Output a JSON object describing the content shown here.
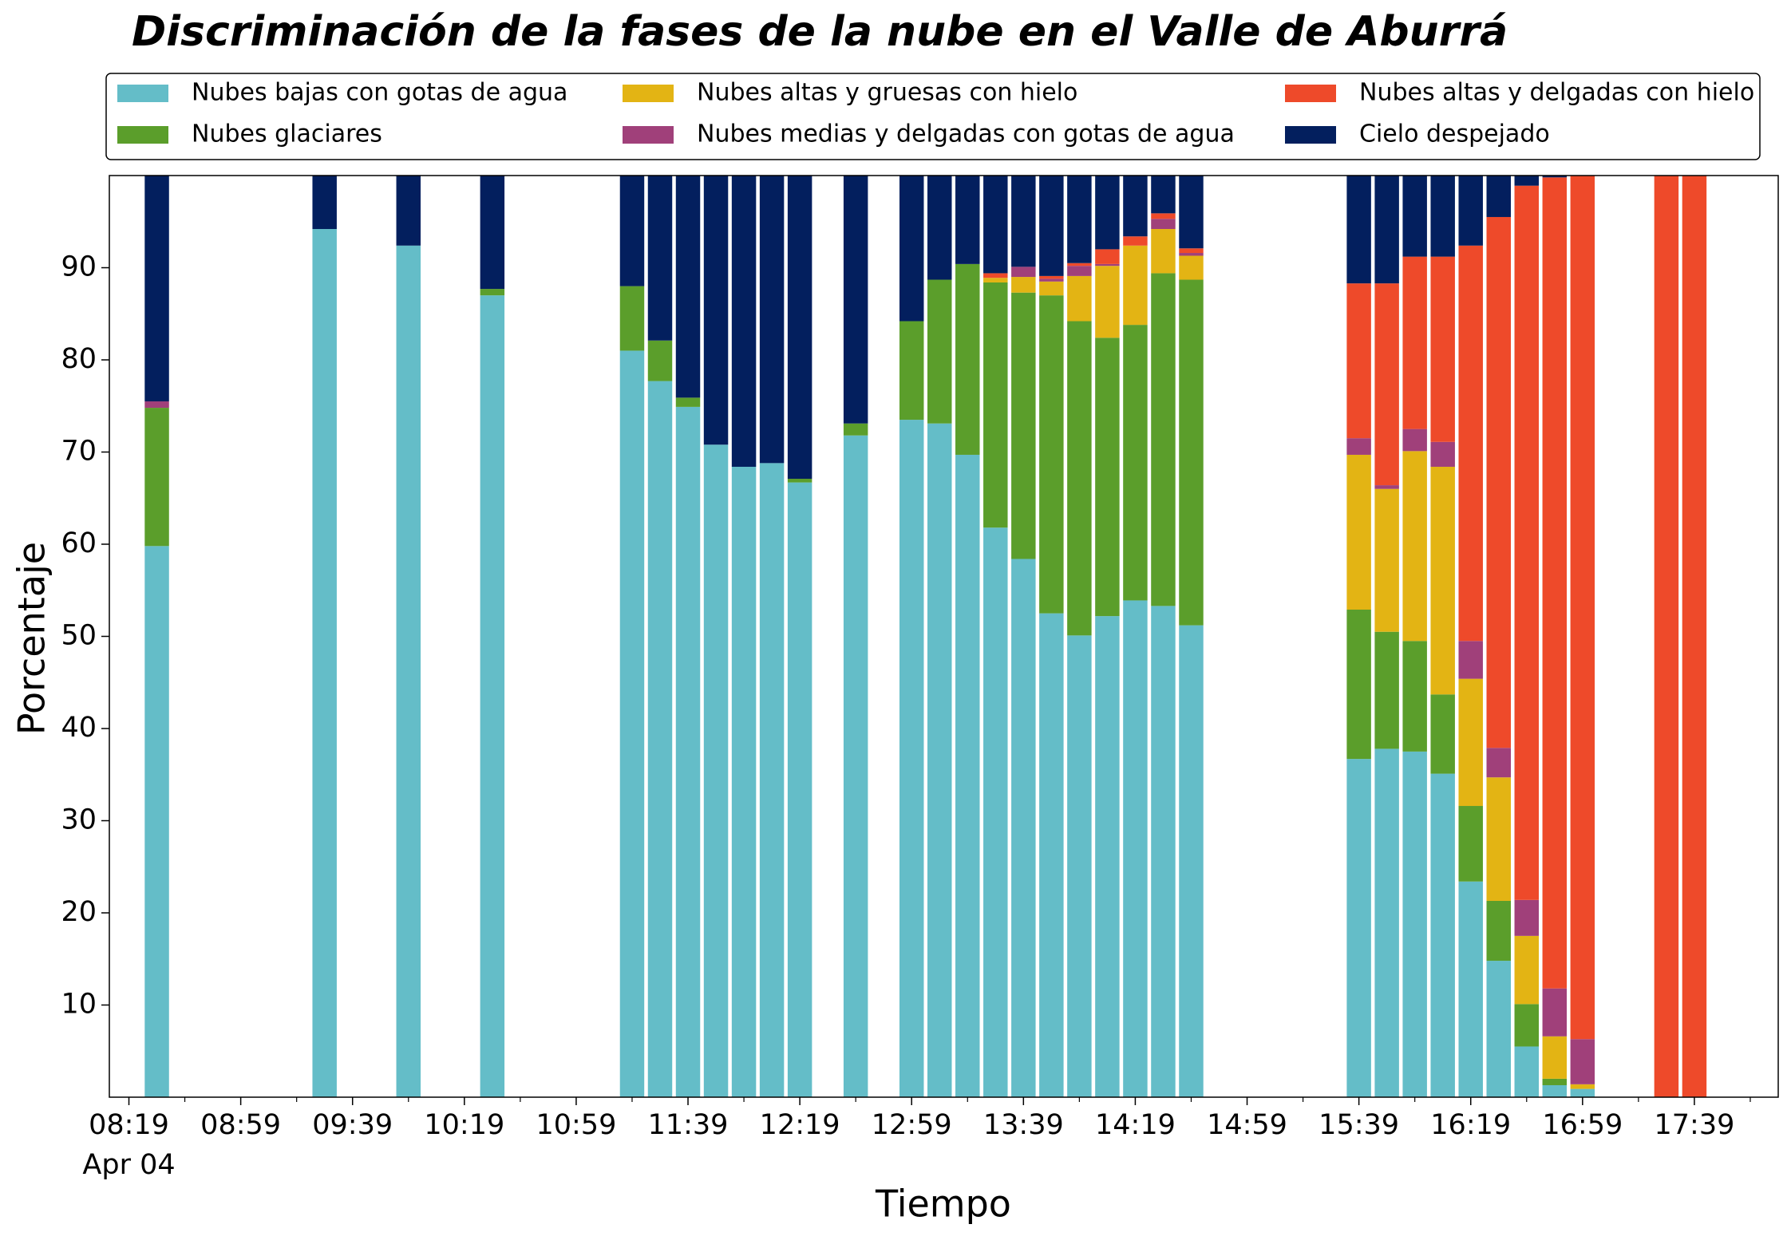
{
  "chart_data": {
    "type": "stacked_bar",
    "title": "Discriminación de la fases de la nube en el Valle de Aburrá",
    "xlabel": "Tiempo",
    "ylabel": "Porcentaje",
    "x": [
      "08:29",
      "09:29",
      "09:59",
      "10:29",
      "11:19",
      "11:29",
      "11:39",
      "11:49",
      "11:59",
      "12:09",
      "12:19",
      "12:39",
      "12:59",
      "13:09",
      "13:19",
      "13:29",
      "13:39",
      "13:49",
      "13:59",
      "14:09",
      "14:19",
      "14:29",
      "14:39",
      "15:39",
      "15:49",
      "15:59",
      "16:09",
      "16:19",
      "16:29",
      "16:39",
      "16:49",
      "16:59",
      "17:29",
      "17:39"
    ],
    "xlim": [
      "08:12",
      "18:09"
    ],
    "xticks": [
      "08:19",
      "08:59",
      "09:39",
      "10:19",
      "10:59",
      "11:39",
      "12:19",
      "12:59",
      "13:39",
      "14:19",
      "14:59",
      "15:39",
      "16:19",
      "16:59",
      "17:39"
    ],
    "xminorticks": [
      "08:39",
      "09:19",
      "09:59",
      "10:39",
      "11:19",
      "11:59",
      "12:39",
      "13:19",
      "13:59",
      "14:39",
      "15:19",
      "15:59",
      "16:39",
      "17:19",
      "17:59"
    ],
    "xtick_date": "Apr 04",
    "ylim": [
      0,
      100
    ],
    "yticks": [
      10,
      20,
      30,
      40,
      50,
      60,
      70,
      80,
      90
    ],
    "legend_position": "top",
    "series": [
      {
        "name": "Nubes bajas con gotas de agua",
        "color": "#64bdc8",
        "values": [
          59.8,
          94.2,
          92.4,
          87,
          81,
          77.7,
          74.9,
          70.8,
          68.4,
          68.8,
          66.7,
          71.8,
          73.5,
          73.1,
          69.7,
          61.8,
          58.4,
          52.5,
          50.1,
          52.2,
          53.9,
          53.3,
          51.2,
          36.7,
          37.8,
          37.5,
          35.1,
          23.4,
          14.8,
          5.5,
          1.3,
          0.9,
          0,
          0
        ]
      },
      {
        "name": "Nubes glaciares",
        "color": "#5b9e2b",
        "values": [
          15,
          0,
          0,
          0.7,
          7,
          4.4,
          1,
          0,
          0,
          0,
          0.4,
          1.3,
          10.7,
          15.6,
          20.7,
          26.6,
          28.9,
          34.5,
          34.1,
          30.2,
          29.9,
          36.1,
          37.5,
          16.2,
          12.7,
          12,
          8.6,
          8.2,
          6.5,
          4.6,
          0.7,
          0,
          0,
          0
        ]
      },
      {
        "name": "Nubes altas y gruesas con hielo",
        "color": "#e3b414",
        "values": [
          0,
          0,
          0,
          0,
          0,
          0,
          0,
          0,
          0,
          0,
          0,
          0,
          0,
          0,
          0,
          0.5,
          1.7,
          1.5,
          4.9,
          7.8,
          8.6,
          4.8,
          2.6,
          16.8,
          15.5,
          20.6,
          24.7,
          13.8,
          13.4,
          7.4,
          4.6,
          0.5,
          0,
          0
        ]
      },
      {
        "name": "Nubes medias y delgadas con gotas de agua",
        "color": "#a0407a",
        "values": [
          0.7,
          0,
          0,
          0,
          0,
          0,
          0,
          0,
          0,
          0,
          0,
          0,
          0,
          0,
          0,
          0,
          1.1,
          0.3,
          1.1,
          0.2,
          0,
          1.1,
          0.3,
          1.8,
          0.4,
          2.4,
          2.7,
          4.1,
          3.2,
          3.9,
          5.2,
          4.9,
          0,
          0
        ]
      },
      {
        "name": "Nubes altas y delgadas con hielo",
        "color": "#ee4a2a",
        "values": [
          0,
          0,
          0,
          0,
          0,
          0,
          0,
          0,
          0,
          0,
          0,
          0,
          0,
          0,
          0,
          0.5,
          0,
          0.3,
          0.3,
          1.6,
          1,
          0.6,
          0.5,
          16.8,
          21.9,
          18.7,
          20.1,
          42.9,
          57.6,
          77.5,
          88,
          93.7,
          100,
          100
        ]
      },
      {
        "name": "Cielo despejado",
        "color": "#031f5e",
        "values": [
          24.5,
          5.8,
          7.6,
          12.3,
          12,
          17.9,
          24.1,
          29.2,
          31.6,
          31.2,
          32.9,
          26.9,
          15.8,
          11.3,
          9.6,
          10.6,
          9.9,
          10.9,
          9.5,
          8,
          6.6,
          4.1,
          7.9,
          11.7,
          11.7,
          8.8,
          8.8,
          7.6,
          4.5,
          1.1,
          0.2,
          0,
          0,
          0
        ]
      }
    ]
  }
}
